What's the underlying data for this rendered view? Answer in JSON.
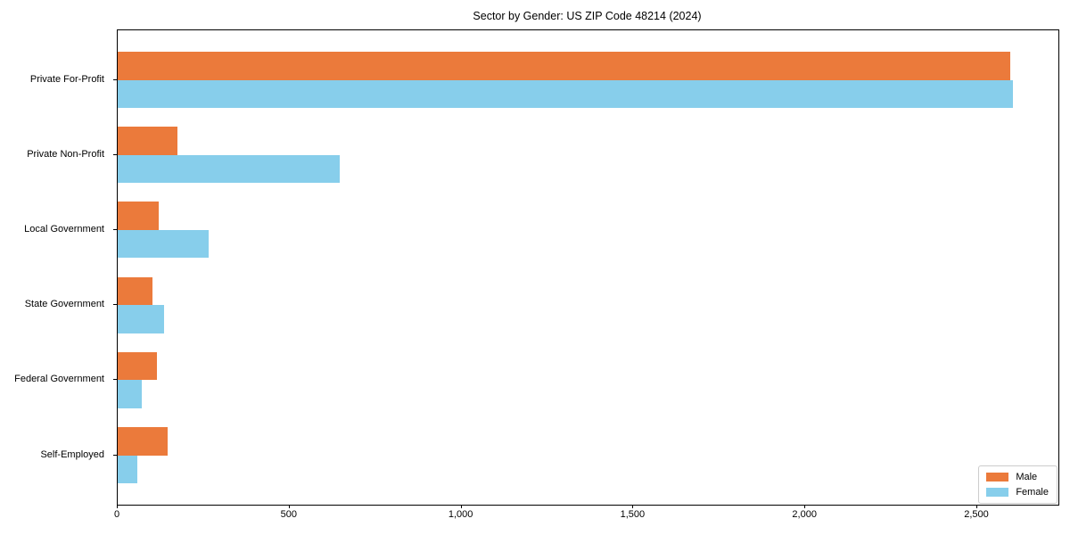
{
  "chart_data": {
    "type": "bar",
    "orientation": "horizontal",
    "title": "Sector by Gender: US ZIP Code 48214 (2024)",
    "categories": [
      "Private For-Profit",
      "Private Non-Profit",
      "Local Government",
      "State Government",
      "Federal Government",
      "Self-Employed"
    ],
    "series": [
      {
        "name": "Male",
        "color": "#eb7a3b",
        "values": [
          2595,
          175,
          120,
          100,
          115,
          145
        ]
      },
      {
        "name": "Female",
        "color": "#87ceeb",
        "values": [
          2605,
          645,
          265,
          135,
          70,
          57
        ]
      }
    ],
    "xlabel": "",
    "ylabel": "",
    "xlim": [
      0,
      2736
    ],
    "xticks": [
      {
        "value": 0,
        "label": "0"
      },
      {
        "value": 500,
        "label": "500"
      },
      {
        "value": 1000,
        "label": "1,000"
      },
      {
        "value": 1500,
        "label": "1,500"
      },
      {
        "value": 2000,
        "label": "2,000"
      },
      {
        "value": 2500,
        "label": "2,500"
      }
    ],
    "grid": false,
    "legend": {
      "position": "lower-right",
      "entries": [
        {
          "label": "Male",
          "color": "#eb7a3b"
        },
        {
          "label": "Female",
          "color": "#87ceeb"
        }
      ]
    },
    "colors": {
      "background": "#ffffff",
      "spine": "#000000"
    }
  }
}
